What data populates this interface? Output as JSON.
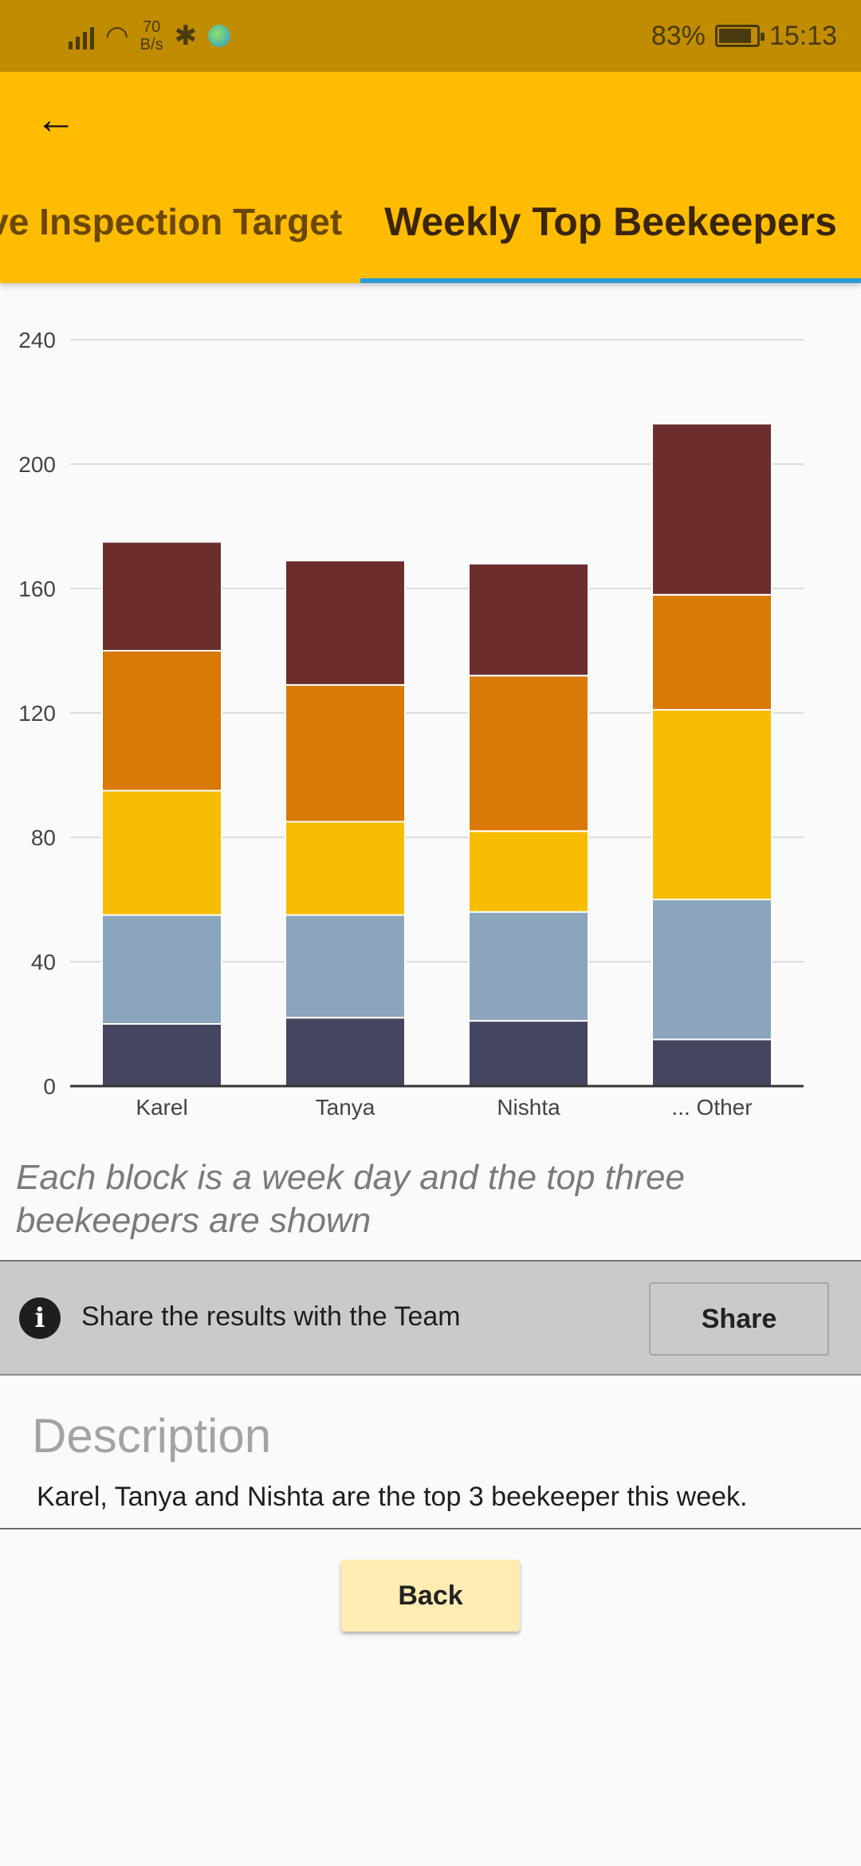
{
  "status_bar": {
    "net_speed_value": "70",
    "net_speed_unit": "B/s",
    "bluetooth_glyph": "✱",
    "wifi_glyph": "◠",
    "battery_percent": "83%",
    "battery_level": 0.83,
    "time": "15:13"
  },
  "app_bar": {
    "back_glyph": "←",
    "tabs": [
      {
        "label": "y Hive Inspection Target",
        "selected": false
      },
      {
        "label": "Weekly Top Beekeepers",
        "selected": true
      }
    ],
    "color": "#ffbc00",
    "indicator_color": "#2b9bd6"
  },
  "chart_data": {
    "type": "bar",
    "stacked": true,
    "categories": [
      "Karel",
      "Tanya",
      "Nishta",
      "... Other"
    ],
    "series": [
      {
        "color": "#44465f",
        "values": [
          20,
          22,
          21,
          15
        ]
      },
      {
        "color": "#8ba5bd",
        "values": [
          35,
          33,
          35,
          45
        ]
      },
      {
        "color": "#f8bd00",
        "values": [
          40,
          30,
          26,
          61
        ]
      },
      {
        "color": "#d97906",
        "values": [
          45,
          44,
          50,
          37
        ]
      },
      {
        "color": "#6b2e2d",
        "values": [
          35,
          40,
          36,
          55
        ]
      }
    ],
    "ylim": [
      0,
      240
    ],
    "yticks": [
      0,
      40,
      80,
      120,
      160,
      200,
      240
    ],
    "grid": true
  },
  "caption": "Each block is a week day and the top three beekeepers are shown",
  "share": {
    "info_glyph": "i",
    "text": "Share the results with the Team",
    "button_label": "Share"
  },
  "description": {
    "title": "Description",
    "body": "Karel, Tanya and Nishta are the top 3 beekeeper this week."
  },
  "back_button_label": "Back"
}
